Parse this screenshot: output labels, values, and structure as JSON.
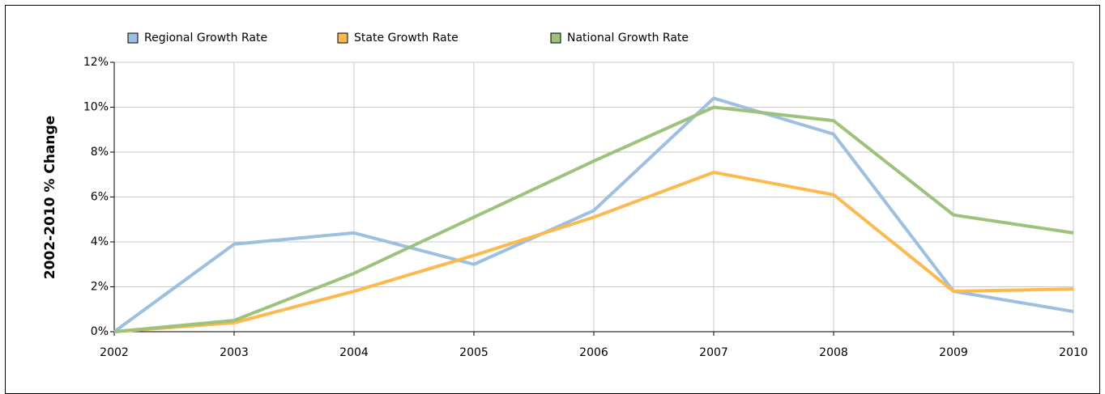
{
  "chart_data": {
    "type": "line",
    "ylabel": "2002-2010 % Change",
    "x": [
      2002,
      2003,
      2004,
      2005,
      2006,
      2007,
      2008,
      2009,
      2010
    ],
    "xlim": [
      2002,
      2010
    ],
    "xticks": [
      2002,
      2003,
      2004,
      2005,
      2006,
      2007,
      2008,
      2009,
      2010
    ],
    "ylim": [
      0,
      12
    ],
    "yticks": [
      {
        "value": 0,
        "label": "0%"
      },
      {
        "value": 2,
        "label": "2%"
      },
      {
        "value": 4,
        "label": "4%"
      },
      {
        "value": 6,
        "label": "6%"
      },
      {
        "value": 8,
        "label": "8%"
      },
      {
        "value": 10,
        "label": "10%"
      },
      {
        "value": 12,
        "label": "12%"
      }
    ],
    "grid": true,
    "legend": "top",
    "series": [
      {
        "name": "Regional Growth Rate",
        "color": "#9dbfe0",
        "values": [
          0,
          3.9,
          4.4,
          3.0,
          5.4,
          10.4,
          8.8,
          1.8,
          0.9
        ]
      },
      {
        "name": "State Growth Rate",
        "color": "#fdb94e",
        "values": [
          0,
          0.4,
          1.8,
          3.4,
          5.1,
          7.1,
          6.1,
          1.8,
          1.9
        ]
      },
      {
        "name": "National Growth Rate",
        "color": "#9dc27b",
        "values": [
          0,
          0.5,
          2.6,
          5.1,
          7.6,
          10.0,
          9.4,
          5.2,
          4.4
        ]
      }
    ]
  }
}
